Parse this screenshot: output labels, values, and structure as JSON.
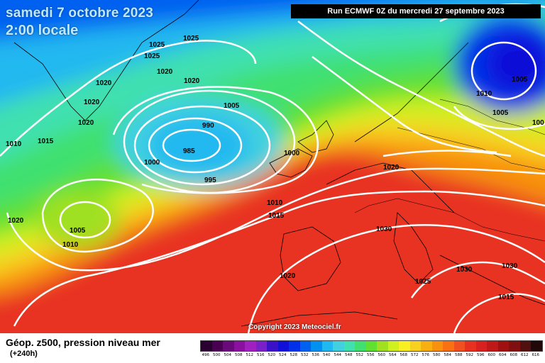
{
  "header": {
    "date_title": "samedi 7 octobre 2023",
    "time_title": "2:00 locale",
    "run_info": "Run ECMWF 0Z du mercredi 27 septembre 2023"
  },
  "copyright": "Copyright 2023 Meteociel.fr",
  "legend": {
    "title": "Géop. z500, pression niveau mer",
    "subtitle": "(+240h)",
    "scale": [
      {
        "value": "496",
        "color": "#2a0030"
      },
      {
        "value": "500",
        "color": "#4a0050"
      },
      {
        "value": "504",
        "color": "#6a0a7a"
      },
      {
        "value": "508",
        "color": "#8a10a0"
      },
      {
        "value": "512",
        "color": "#a020c0"
      },
      {
        "value": "516",
        "color": "#7a20c8"
      },
      {
        "value": "520",
        "color": "#3a10c8"
      },
      {
        "value": "524",
        "color": "#1010d8"
      },
      {
        "value": "528",
        "color": "#0030e8"
      },
      {
        "value": "532",
        "color": "#0060f0"
      },
      {
        "value": "536",
        "color": "#0090f0"
      },
      {
        "value": "540",
        "color": "#20b8f0"
      },
      {
        "value": "544",
        "color": "#40d0e0"
      },
      {
        "value": "548",
        "color": "#40e0b0"
      },
      {
        "value": "552",
        "color": "#40e070"
      },
      {
        "value": "556",
        "color": "#60e030"
      },
      {
        "value": "560",
        "color": "#a0e020"
      },
      {
        "value": "564",
        "color": "#d0f020"
      },
      {
        "value": "568",
        "color": "#f8f020"
      },
      {
        "value": "572",
        "color": "#f8d020"
      },
      {
        "value": "576",
        "color": "#f8b010"
      },
      {
        "value": "580",
        "color": "#f89010"
      },
      {
        "value": "584",
        "color": "#f87010"
      },
      {
        "value": "588",
        "color": "#f05020"
      },
      {
        "value": "592",
        "color": "#e83020"
      },
      {
        "value": "596",
        "color": "#d82020"
      },
      {
        "value": "600",
        "color": "#c01818"
      },
      {
        "value": "604",
        "color": "#a01010"
      },
      {
        "value": "608",
        "color": "#801010"
      },
      {
        "value": "612",
        "color": "#501010"
      },
      {
        "value": "616",
        "color": "#200808"
      }
    ]
  },
  "isobars": [
    {
      "value": "1025",
      "id": "a"
    },
    {
      "value": "1025",
      "id": "b"
    },
    {
      "value": "1025",
      "id": "c"
    },
    {
      "value": "1020",
      "id": "d"
    },
    {
      "value": "1020",
      "id": "e"
    },
    {
      "value": "1020",
      "id": "f"
    },
    {
      "value": "1020",
      "id": "g"
    },
    {
      "value": "1020",
      "id": "h"
    },
    {
      "value": "1010",
      "id": "i"
    },
    {
      "value": "1015",
      "id": "j"
    },
    {
      "value": "1005",
      "id": "k"
    },
    {
      "value": "990",
      "id": "l"
    },
    {
      "value": "985",
      "id": "m"
    },
    {
      "value": "1000",
      "id": "n"
    },
    {
      "value": "995",
      "id": "o"
    },
    {
      "value": "1000",
      "id": "p"
    },
    {
      "value": "1020",
      "id": "q"
    },
    {
      "value": "1010",
      "id": "r"
    },
    {
      "value": "1015",
      "id": "s"
    },
    {
      "value": "1005",
      "id": "t"
    },
    {
      "value": "1010",
      "id": "u"
    },
    {
      "value": "1020",
      "id": "v"
    },
    {
      "value": "1030",
      "id": "w"
    },
    {
      "value": "1020",
      "id": "x"
    },
    {
      "value": "1025",
      "id": "y"
    },
    {
      "value": "1030",
      "id": "z"
    },
    {
      "value": "1030",
      "id": "aa"
    },
    {
      "value": "1015",
      "id": "ab"
    },
    {
      "value": "1005",
      "id": "ac"
    },
    {
      "value": "1010",
      "id": "ad"
    },
    {
      "value": "1005",
      "id": "ae"
    },
    {
      "value": "100",
      "id": "af"
    }
  ]
}
